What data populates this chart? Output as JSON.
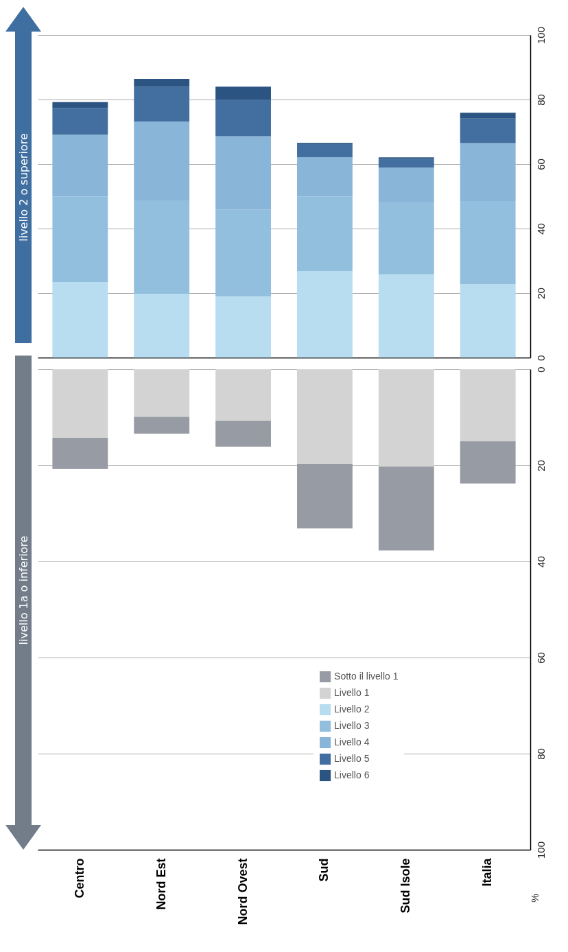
{
  "chart_data": [
    {
      "type": "bar",
      "stacked": true,
      "categories": [
        null,
        null,
        null,
        null,
        null,
        null
      ],
      "ylim": [
        0,
        100
      ],
      "yticks": [
        0,
        20,
        40,
        60,
        80,
        100
      ],
      "grid": "y",
      "legend": "bottom",
      "annotations": [
        "livello 2 o superiore"
      ],
      "series": [
        {
          "name": "Livello 2",
          "color": "#b8dcf0",
          "values": [
            23.4,
            19.8,
            19.0,
            26.8,
            25.8,
            22.7
          ]
        },
        {
          "name": "Livello 3",
          "color": "#93bfdf",
          "values": [
            26.5,
            28.9,
            26.9,
            23.1,
            22.1,
            25.8
          ]
        },
        {
          "name": "Livello 4",
          "color": "#89b5d8",
          "values": [
            19.2,
            24.5,
            22.7,
            12.2,
            11.0,
            18.0
          ]
        },
        {
          "name": "Livello 5",
          "color": "#426f9f",
          "values": [
            8.3,
            10.8,
            11.3,
            4.1,
            2.7,
            7.6
          ]
        },
        {
          "name": "Livello 6",
          "color": "#2b5482",
          "values": [
            1.8,
            2.4,
            4.1,
            0.4,
            0.5,
            1.8
          ]
        }
      ]
    },
    {
      "type": "bar",
      "stacked": true,
      "categories": [
        "Centro",
        "Nord Est",
        "Nord Ovest",
        "Sud",
        "Sud Isole",
        "Italia"
      ],
      "ylim": [
        100,
        0
      ],
      "yticks": [
        0,
        20,
        40,
        60,
        80,
        100
      ],
      "ylabel": "%",
      "grid": "y",
      "legend": "bottom right",
      "annotations": [
        "livello 1a o inferiore"
      ],
      "series": [
        {
          "name": "Livello 1",
          "color": "#d3d3d3",
          "values": [
            14.3,
            9.9,
            10.7,
            19.7,
            20.2,
            15.0
          ]
        },
        {
          "name": "Sotto il livello 1",
          "color": "#979ba3",
          "values": [
            6.4,
            3.5,
            5.4,
            13.4,
            17.5,
            8.8
          ]
        }
      ]
    }
  ]
}
